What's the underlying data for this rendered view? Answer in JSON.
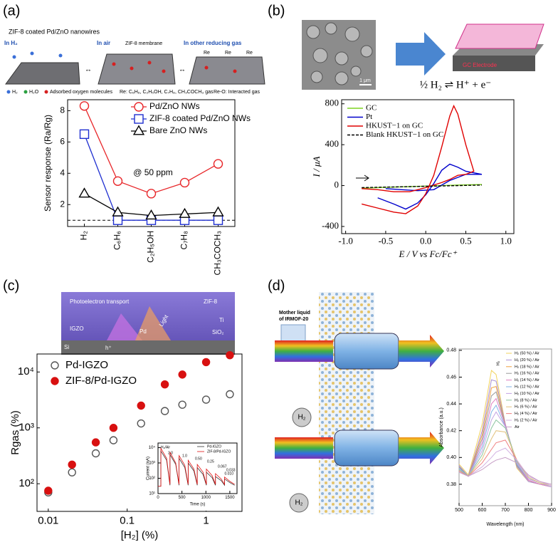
{
  "panel_labels": [
    "(a)",
    "(b)",
    "(c)",
    "(d)"
  ],
  "schematics": {
    "a": {
      "title": "ZIF-8 coated Pd/ZnO nanowires",
      "states": [
        "In H₂",
        "In air",
        "In other reducing gas"
      ],
      "membrane": "ZIF-8 membrane",
      "re": [
        "Re",
        "Re",
        "Re"
      ],
      "key": [
        "H₂",
        "H₂O",
        "Adsorbed oxygen molecules",
        "Re: C₆H₆, C₂H₅OH, C₇H₈, CH₃COCH₃ gas",
        "Re-O: Interacted gas"
      ]
    },
    "b": {
      "scale_bar": "1 μm",
      "electrode": "GC Electrode"
    },
    "c": {
      "labels": [
        "Photoelectron transport",
        "ZIF-8",
        "IGZO",
        "Pd",
        "Light",
        "Ti",
        "SiO₂",
        "Si",
        "h⁺"
      ]
    },
    "d": {
      "source": [
        "Mother liquid",
        "of IRMOF-20"
      ],
      "gas": [
        "H₂",
        "H₂"
      ]
    }
  },
  "chart_data": [
    {
      "type": "line",
      "y_label": "Sensor response (Ra/Rg)",
      "categories": [
        "H₂",
        "C₆H₆",
        "C₂H₅OH",
        "C₇H₈",
        "CH₃COCH₃"
      ],
      "series": [
        {
          "name": "Pd/ZnO NWs",
          "color": "#e8272a",
          "marker": "circle",
          "marker_fill": "#ffffff",
          "values": [
            8.3,
            3.5,
            2.7,
            3.4,
            4.6
          ]
        },
        {
          "name": "ZIF-8 coated Pd/ZnO NWs",
          "color": "#1f2fd0",
          "marker": "square",
          "marker_fill": "#ffffff",
          "values": [
            6.5,
            1.0,
            1.0,
            1.0,
            1.0
          ]
        },
        {
          "name": "Bare ZnO NWs",
          "color": "#000000",
          "marker": "triangle",
          "marker_fill": "#ffffff",
          "values": [
            2.7,
            1.5,
            1.3,
            1.4,
            1.5
          ]
        }
      ],
      "ylim": [
        0.6,
        8.7
      ],
      "yticks": [
        2,
        4,
        6,
        8
      ],
      "refline": 1,
      "annotations": [
        "@ 50 ppm"
      ],
      "legend": "upper right"
    },
    {
      "type": "line",
      "x_label": "E / V vs Fc/Fc⁺",
      "y_label": "I / μA",
      "series": [
        {
          "name": "GC",
          "color": "#7ed321",
          "x": [
            -0.8,
            -0.4,
            0.0,
            0.4,
            0.7
          ],
          "values": [
            -25,
            -15,
            -5,
            5,
            10
          ]
        },
        {
          "name": "Pt",
          "color": "#0000cc",
          "x": [
            -0.6,
            -0.4,
            -0.25,
            -0.1,
            0.0,
            0.1,
            0.2,
            0.3,
            0.4,
            0.5,
            0.7,
            0.5,
            0.3,
            0.1,
            -0.1,
            -0.3,
            -0.5
          ],
          "values": [
            -120,
            -180,
            -230,
            -170,
            -90,
            20,
            150,
            210,
            180,
            140,
            110,
            110,
            50,
            -40,
            -50,
            -40,
            -30
          ]
        },
        {
          "name": "HKUST−1 on GC",
          "color": "#e00000",
          "x": [
            -0.8,
            -0.6,
            -0.4,
            -0.25,
            -0.1,
            0.0,
            0.1,
            0.2,
            0.3,
            0.35,
            0.4,
            0.5,
            0.6,
            0.5,
            0.4,
            0.3,
            0.2,
            0.0,
            -0.2,
            -0.4,
            -0.6,
            -0.8
          ],
          "values": [
            -180,
            -220,
            -260,
            -275,
            -200,
            -80,
            100,
            380,
            680,
            780,
            700,
            400,
            140,
            110,
            100,
            60,
            30,
            -20,
            -60,
            -60,
            -40,
            -30
          ]
        },
        {
          "name": "Blank HKUST−1 on GC",
          "color": "#000000",
          "dash": true,
          "x": [
            -0.8,
            0.7
          ],
          "values": [
            -20,
            5
          ]
        }
      ],
      "xlim": [
        -1.05,
        1.1
      ],
      "xticks": [
        {
          "value": -1,
          "label": "-1.0"
        },
        -0.5,
        {
          "value": 0,
          "label": "0.0"
        },
        0.5,
        {
          "value": 1,
          "label": "1.0"
        }
      ],
      "ylim": [
        -470,
        840
      ],
      "yticks": [
        -400,
        0,
        400,
        800
      ],
      "annotations": [
        "½ H₂ ⇌ H⁺ + e⁻"
      ],
      "legend": "upper left"
    },
    {
      "type": "scatter",
      "x_label": "[H₂] (%)",
      "y_label": "Rgas (%)",
      "xscale": "log",
      "yscale": "log",
      "x": [
        0.01,
        0.02,
        0.04,
        0.067,
        0.15,
        0.3,
        0.5,
        1,
        2
      ],
      "series": [
        {
          "name": "Pd-IGZO",
          "color": "#555555",
          "marker": "circle",
          "marker_fill": "#ffffff",
          "values": [
            70,
            160,
            350,
            600,
            1200,
            2000,
            2600,
            3200,
            4000
          ]
        },
        {
          "name": "ZIF-8/Pd-IGZO",
          "color": "#d81010",
          "marker": "circle",
          "marker_fill": "#d81010",
          "values": [
            75,
            220,
            550,
            1000,
            2500,
            6000,
            9000,
            15000,
            20000
          ]
        }
      ],
      "xlim": [
        0.0072,
        2.85
      ],
      "xticks": [
        0.01,
        0.1,
        1
      ],
      "ylim": [
        32,
        21000
      ],
      "yticks": [
        {
          "value": 100,
          "label": "10²"
        },
        {
          "value": 1000,
          "label": "10³"
        },
        {
          "value": 10000,
          "label": "10⁴"
        }
      ],
      "legend": "upper left"
    },
    {
      "type": "line",
      "x_label": "Wavelength (nm)",
      "y_label": "Absorbance (a.u.)",
      "x": [
        500,
        540,
        600,
        640,
        660,
        700,
        750,
        800,
        850,
        900
      ],
      "series": [
        {
          "name": "H₂ (50 %) / Air",
          "color": "#f2d35c",
          "values": [
            0.395,
            0.387,
            0.425,
            0.465,
            0.462,
            0.425,
            0.392,
            0.382,
            0.38,
            0.378
          ]
        },
        {
          "name": "H₂ (20 %) / Air",
          "color": "#a98fd6",
          "values": [
            0.394,
            0.386,
            0.42,
            0.458,
            0.457,
            0.425,
            0.393,
            0.382,
            0.38,
            0.378
          ]
        },
        {
          "name": "H₂ (18 %) / Air",
          "color": "#f0a040",
          "values": [
            0.393,
            0.386,
            0.417,
            0.452,
            0.453,
            0.424,
            0.394,
            0.383,
            0.38,
            0.378
          ]
        },
        {
          "name": "H₂ (16 %) / Air",
          "color": "#9a9a9a",
          "values": [
            0.393,
            0.386,
            0.414,
            0.446,
            0.449,
            0.424,
            0.394,
            0.383,
            0.38,
            0.378
          ]
        },
        {
          "name": "H₂ (14 %) / Air",
          "color": "#e07cc0",
          "values": [
            0.392,
            0.386,
            0.411,
            0.44,
            0.444,
            0.424,
            0.395,
            0.383,
            0.38,
            0.378
          ]
        },
        {
          "name": "H₂ (12 %) / Air",
          "color": "#7fb2e5",
          "values": [
            0.392,
            0.386,
            0.408,
            0.434,
            0.439,
            0.423,
            0.395,
            0.384,
            0.381,
            0.378
          ]
        },
        {
          "name": "H₂ (10 %) / Air",
          "color": "#c3a3e3",
          "values": [
            0.391,
            0.386,
            0.405,
            0.428,
            0.434,
            0.423,
            0.396,
            0.384,
            0.381,
            0.378
          ]
        },
        {
          "name": "H₂ (8 %) / Air",
          "color": "#8cc4a0",
          "values": [
            0.391,
            0.386,
            0.402,
            0.422,
            0.428,
            0.422,
            0.397,
            0.385,
            0.381,
            0.379
          ]
        },
        {
          "name": "H₂ (6 %) / Air",
          "color": "#e3c27d",
          "values": [
            0.39,
            0.386,
            0.399,
            0.414,
            0.42,
            0.419,
            0.398,
            0.385,
            0.381,
            0.379
          ]
        },
        {
          "name": "H₂ (4 %) / Air",
          "color": "#f08080",
          "values": [
            0.39,
            0.386,
            0.396,
            0.406,
            0.411,
            0.413,
            0.398,
            0.386,
            0.382,
            0.379
          ]
        },
        {
          "name": "H₂ (2 %) / Air",
          "color": "#d2b2e2",
          "values": [
            0.389,
            0.386,
            0.393,
            0.4,
            0.404,
            0.407,
            0.398,
            0.386,
            0.382,
            0.379
          ]
        },
        {
          "name": "Air",
          "color": "#c79ec7",
          "values": [
            0.389,
            0.386,
            0.391,
            0.396,
            0.398,
            0.4,
            0.396,
            0.387,
            0.382,
            0.38
          ]
        }
      ],
      "xlim": [
        500,
        900
      ],
      "xticks": [
        500,
        600,
        700,
        800,
        900
      ],
      "ylim": [
        0.364,
        0.481
      ],
      "yticks": [
        0.38,
        {
          "value": 0.4,
          "label": "0.40"
        },
        0.42,
        0.44,
        0.46,
        0.48
      ],
      "annotations": [
        "H₂"
      ],
      "legend": "upper right"
    },
    {
      "type": "line",
      "x_label": "Time (s)",
      "y_label": "Current (nA)",
      "yscale": "log",
      "x": [
        0,
        60,
        60,
        180,
        250,
        250,
        370,
        440,
        440,
        560,
        630,
        630,
        750,
        820,
        820,
        940,
        1010,
        1010,
        1130,
        1200,
        1200,
        1320,
        1390,
        1390,
        1510,
        1600
      ],
      "series": [
        {
          "name": "Pd-IGZO",
          "color": "#333333",
          "values": [
            30,
            30,
            6000,
            1500,
            35,
            3500,
            800,
            35,
            2000,
            500,
            35,
            1000,
            300,
            35,
            500,
            180,
            35,
            250,
            110,
            35,
            130,
            70,
            35,
            90,
            50,
            35
          ]
        },
        {
          "name": "ZIF-8/Pd-IGZO",
          "color": "#e01010",
          "values": [
            30,
            30,
            9000,
            2000,
            40,
            5000,
            1000,
            40,
            3000,
            700,
            40,
            1500,
            400,
            40,
            800,
            250,
            40,
            400,
            150,
            40,
            200,
            90,
            40,
            120,
            60,
            40
          ]
        }
      ],
      "xlim": [
        0,
        1650
      ],
      "xticks": [
        0,
        500,
        1000,
        1500
      ],
      "ylim": [
        10,
        20000
      ],
      "yticks": [
        {
          "value": 10,
          "label": "10¹"
        },
        {
          "value": 100,
          "label": "10²"
        },
        {
          "value": 1000,
          "label": "10³"
        },
        {
          "value": 10000,
          "label": "10⁴"
        }
      ],
      "annotations": [
        "H₂/Air",
        "2.0",
        "1.0",
        "0.50",
        "0.25",
        "0.067",
        "0.033",
        "0.010"
      ],
      "legend": "upper right"
    }
  ]
}
